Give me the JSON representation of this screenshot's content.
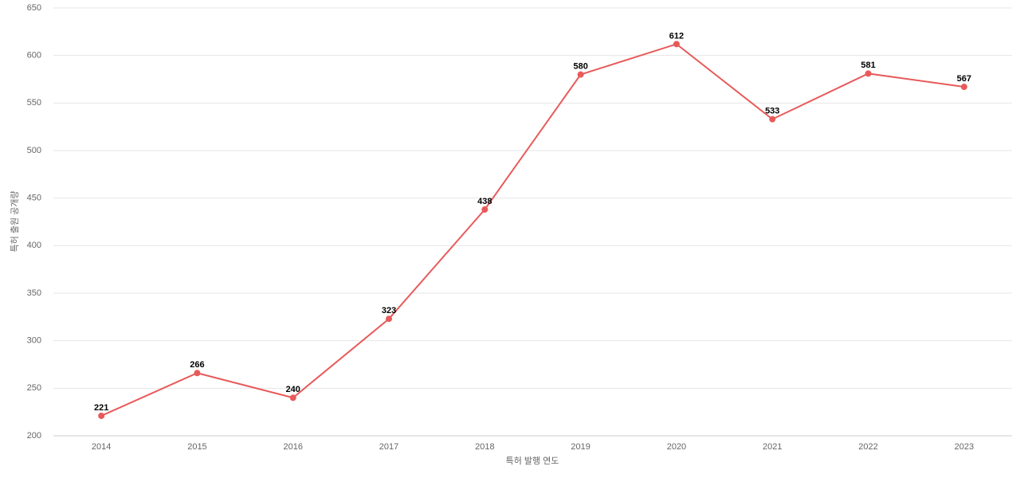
{
  "chart_data": {
    "type": "line",
    "categories": [
      "2014",
      "2015",
      "2016",
      "2017",
      "2018",
      "2019",
      "2020",
      "2021",
      "2022",
      "2023"
    ],
    "series": [
      {
        "color": "#e85a5a",
        "values": [
          221,
          266,
          240,
          323,
          438,
          580,
          612,
          533,
          581,
          567
        ]
      }
    ],
    "xlabel": "특허 발행 연도",
    "ylabel": "특허 출원 공개량",
    "ylim": [
      200,
      650
    ],
    "yticks": [
      200,
      250,
      300,
      350,
      400,
      450,
      500,
      550,
      600,
      650
    ],
    "grid": true,
    "data_labels": true
  }
}
